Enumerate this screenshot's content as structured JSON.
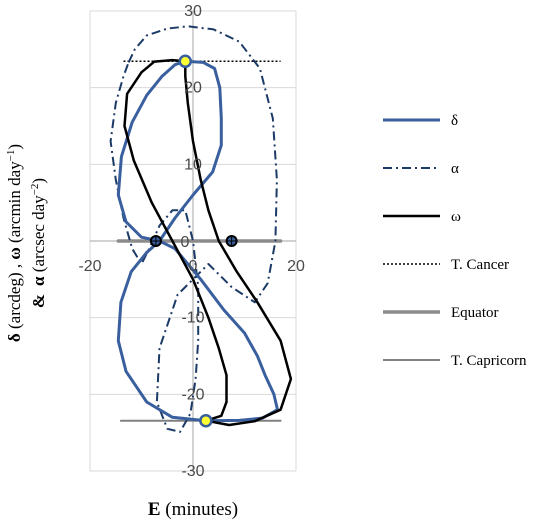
{
  "chart_data": {
    "type": "line",
    "xlim": [
      -20,
      20
    ],
    "ylim": [
      -30,
      30
    ],
    "x_ticks": [
      -20,
      0,
      20
    ],
    "x_tick_labels": [
      "-20",
      "0",
      "20"
    ],
    "y_ticks": [
      -30,
      -20,
      -10,
      0,
      10,
      20,
      30
    ],
    "y_tick_labels": [
      "-30",
      "-20",
      "-10",
      "0",
      "10",
      "20",
      "30"
    ],
    "grid": true,
    "legend_position": "right",
    "xlabel": {
      "bold": "E",
      "rest": " (minutes)"
    },
    "ylabel": {
      "line1": {
        "delta": "δ",
        "t1": " (arcdeg) , ",
        "omega": "ω",
        "t2": " (arcmin day",
        "sup": "−1",
        "t3": ")"
      },
      "line2": {
        "amp": "&",
        "alpha": "α",
        "t1": " (arcsec day",
        "sup": "−2",
        "t3": ")"
      }
    },
    "series": [
      {
        "name": "δ",
        "color": "#3a5f9e",
        "dash": "solid",
        "width": 3,
        "points": [
          [
            -1.5,
            23.44
          ],
          [
            -3.5,
            23
          ],
          [
            -6,
            21.5
          ],
          [
            -9,
            19
          ],
          [
            -11.8,
            15.5
          ],
          [
            -13.9,
            11
          ],
          [
            -14.5,
            6
          ],
          [
            -13,
            2.5
          ],
          [
            -10,
            0.5
          ],
          [
            -6.5,
            0
          ],
          [
            -3.5,
            -1
          ],
          [
            1.5,
            -5
          ],
          [
            6,
            -9
          ],
          [
            10,
            -12
          ],
          [
            12.5,
            -15
          ],
          [
            14,
            -17.5
          ],
          [
            15.7,
            -20
          ],
          [
            16.4,
            -22
          ],
          [
            13.5,
            -23.1
          ],
          [
            9,
            -23.4
          ],
          [
            2.5,
            -23.44
          ],
          [
            -4,
            -23
          ],
          [
            -9,
            -21
          ],
          [
            -13,
            -17
          ],
          [
            -14.5,
            -13
          ],
          [
            -14,
            -8
          ],
          [
            -12,
            -4
          ],
          [
            -9,
            -1.5
          ],
          [
            -6.5,
            0
          ],
          [
            -3.5,
            3
          ],
          [
            0,
            6
          ],
          [
            3.8,
            9
          ],
          [
            5.5,
            12.5
          ],
          [
            5.5,
            16
          ],
          [
            5.2,
            20
          ],
          [
            4.2,
            22.5
          ],
          [
            2,
            23.3
          ],
          [
            -1.5,
            23.44
          ]
        ]
      },
      {
        "name": "α",
        "color": "#1c3a66",
        "dash": "dashdot",
        "width": 2,
        "points": [
          [
            -12.5,
            23.3
          ],
          [
            -11.3,
            25
          ],
          [
            -9,
            26.8
          ],
          [
            -5,
            27.7
          ],
          [
            -1,
            28
          ],
          [
            4,
            27.6
          ],
          [
            9,
            26
          ],
          [
            13,
            22.5
          ],
          [
            15.5,
            16
          ],
          [
            16.3,
            8
          ],
          [
            16,
            0
          ],
          [
            14.5,
            -5.5
          ],
          [
            12,
            -8
          ],
          [
            7.5,
            -6
          ],
          [
            3,
            -3
          ],
          [
            -3,
            -7
          ],
          [
            -6.5,
            -14
          ],
          [
            -7,
            -21
          ],
          [
            -5,
            -24.5
          ],
          [
            -2.5,
            -24.9
          ],
          [
            -0.5,
            -22.5
          ],
          [
            0.5,
            -18
          ],
          [
            1,
            -13
          ],
          [
            1,
            -6
          ],
          [
            0,
            0
          ],
          [
            -1.5,
            4
          ],
          [
            -4,
            4
          ],
          [
            -6.5,
            2
          ],
          [
            -8.5,
            -1
          ],
          [
            -10,
            -3
          ],
          [
            -11.8,
            -1
          ],
          [
            -13.5,
            3
          ],
          [
            -15,
            8
          ],
          [
            -16,
            13
          ],
          [
            -15,
            18
          ],
          [
            -13.5,
            21.5
          ],
          [
            -12.5,
            23.3
          ]
        ]
      },
      {
        "name": "ω",
        "color": "#000000",
        "dash": "solid",
        "width": 2.5,
        "points": [
          [
            -1.5,
            23.44
          ],
          [
            -4,
            23.6
          ],
          [
            -7.5,
            23.4
          ],
          [
            -10,
            22
          ],
          [
            -12.8,
            19.2
          ],
          [
            -13.3,
            15
          ],
          [
            -11.5,
            10.5
          ],
          [
            -8,
            5
          ],
          [
            -4,
            0
          ],
          [
            0,
            -5
          ],
          [
            3,
            -10
          ],
          [
            5,
            -14
          ],
          [
            6.5,
            -17.5
          ],
          [
            6.5,
            -21
          ],
          [
            5.5,
            -22.8
          ],
          [
            2.5,
            -23.44
          ],
          [
            7,
            -24
          ],
          [
            12,
            -23.5
          ],
          [
            17,
            -22
          ],
          [
            19,
            -18
          ],
          [
            17,
            -13
          ],
          [
            12.5,
            -8
          ],
          [
            8.5,
            -4
          ],
          [
            5,
            0
          ],
          [
            3,
            4
          ],
          [
            1.5,
            8
          ],
          [
            0,
            13
          ],
          [
            -1,
            18
          ],
          [
            -1.5,
            21.5
          ],
          [
            -1.5,
            23.44
          ]
        ]
      },
      {
        "name": "T. Cancer",
        "color": "#000000",
        "dash": "dotted",
        "width": 1.5,
        "points": [
          [
            -13.5,
            23.44
          ],
          [
            17,
            23.44
          ]
        ]
      },
      {
        "name": "Equator",
        "color": "#8c8c8c",
        "dash": "solid",
        "width": 3.5,
        "points": [
          [
            -14.5,
            0
          ],
          [
            17,
            0
          ]
        ]
      },
      {
        "name": "T. Capricorn",
        "color": "#808080",
        "dash": "solid",
        "width": 2,
        "points": [
          [
            -14,
            -23.44
          ],
          [
            17,
            -23.44
          ]
        ]
      }
    ],
    "markers": [
      {
        "type": "solstice",
        "x": -1.5,
        "y": 23.44,
        "fill": "#ffff33"
      },
      {
        "type": "solstice",
        "x": 2.5,
        "y": -23.44,
        "fill": "#ffff33"
      },
      {
        "type": "equinox",
        "x": -7.2,
        "y": 0,
        "fill": "#3a5f9e"
      },
      {
        "type": "equinox",
        "x": 7.5,
        "y": 0,
        "fill": "#3a5f9e"
      }
    ]
  }
}
